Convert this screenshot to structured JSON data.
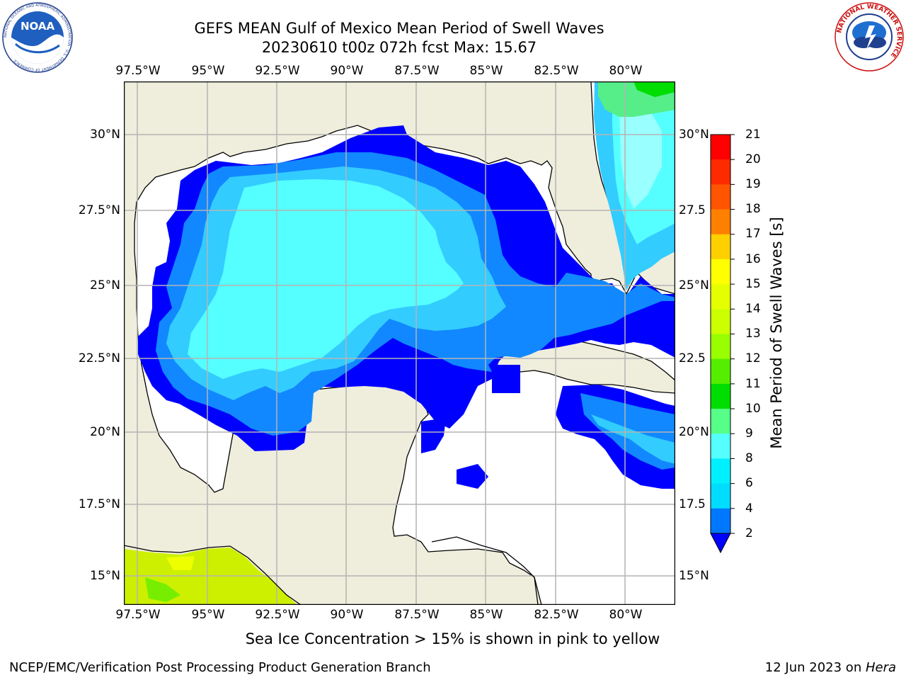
{
  "title_line1": "GEFS MEAN Gulf of Mexico Mean Period of Swell Waves",
  "title_line2": "20230610 t00z 072h fcst   Max: 15.67",
  "lon_labels": [
    "97.5°W",
    "95°W",
    "92.5°W",
    "90°W",
    "87.5°W",
    "85°W",
    "82.5°W",
    "80°W"
  ],
  "lat_labels": [
    "30°N",
    "27.5°N",
    "25°N",
    "22.5°N",
    "20°N",
    "17.5°N",
    "15°N"
  ],
  "right_lat_labels": [
    "30°N",
    "27.5",
    "25°N",
    "22.5",
    "20°N",
    "17.5",
    "15°N"
  ],
  "colorbar": {
    "label": "Mean Period of Swell Waves [s]",
    "ticks": [
      "21",
      "20",
      "19",
      "18",
      "17",
      "16",
      "15",
      "14",
      "13",
      "12",
      "11",
      "10",
      "9",
      "8",
      "6",
      "4",
      "2"
    ],
    "colors_top_to_bottom": [
      "#ff0000",
      "#ff2a00",
      "#ff5500",
      "#ff8000",
      "#ffaa00",
      "#ffd000",
      "#ffff00",
      "#e6ff00",
      "#ccff00",
      "#99ff00",
      "#55ee00",
      "#00dd00",
      "#55ff88",
      "#99ffff",
      "#55ffff",
      "#00f0ff",
      "#00ddff",
      "#0077ff"
    ],
    "extend_color": "#0000ff"
  },
  "colors": {
    "land": "#efeddc",
    "ocean_calm": "#ffffff",
    "swell_2_4": "#0000ff",
    "swell_4_6": "#1188ff",
    "swell_6_8": "#33ccff",
    "swell_8_9": "#55ffff",
    "swell_9_10": "#99ffff",
    "gridline": "#b4b4b4"
  },
  "ice_note": "Sea Ice Concentration > 15% is shown in pink to yellow",
  "footer_left": "NCEP/EMC/Verification Post Processing Product Generation Branch",
  "footer_date": "12 Jun 2023 on ",
  "footer_host": "Hera",
  "logos": {
    "noaa": "NOAA",
    "noaa_ring": "NATIONAL OCEANIC AND ATMOSPHERIC ADMINISTRATION · U.S. DEPARTMENT OF COMMERCE",
    "nws_ring": "NATIONAL WEATHER SERVICE"
  }
}
